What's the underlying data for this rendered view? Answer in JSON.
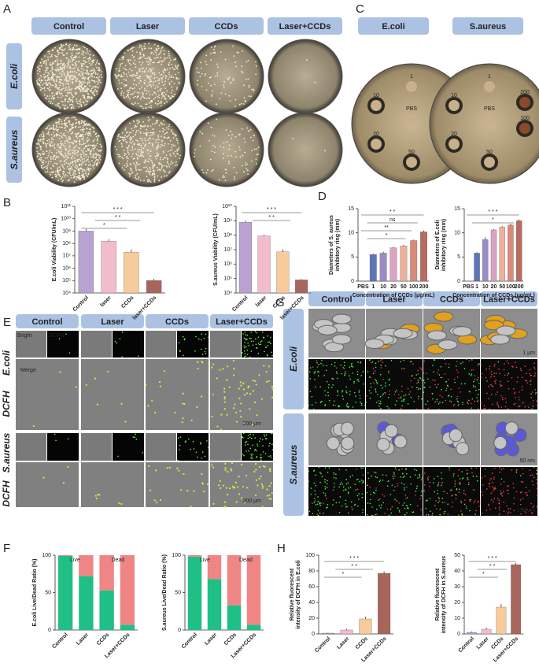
{
  "panel_labels": [
    "A",
    "B",
    "C",
    "D",
    "E",
    "F",
    "G",
    "H"
  ],
  "panel_a": {
    "columns": [
      "Control",
      "Laser",
      "CCDs",
      "Laser+CCDs"
    ],
    "rows": [
      "E.coli",
      "S.aureus"
    ]
  },
  "panel_c": {
    "columns": [
      "E.coli",
      "S.aureus"
    ],
    "disk_labels": [
      "1",
      "10",
      "200",
      "PBS",
      "20",
      "100",
      "50"
    ]
  },
  "panel_e": {
    "columns": [
      "Control",
      "Laser",
      "CCDs",
      "Laser+CCDs"
    ],
    "rows": [
      "E.coli",
      "S.aureus"
    ],
    "stain": "DCFH",
    "inset_labels": [
      "Bright",
      "DCFH",
      "Merge"
    ],
    "scale_bar": "200 μm"
  },
  "panel_g": {
    "columns": [
      "Control",
      "Laser",
      "CCDs",
      "Laser+CCDs"
    ],
    "rows": [
      "E.coli",
      "S.aureus"
    ],
    "scale_bars": [
      "1 μm",
      "100 μm",
      "50 nm",
      "100 μm"
    ]
  },
  "chart_data": [
    {
      "type": "bar",
      "log_scale": true,
      "ylabel": [
        "E.coli Viability (CFU/mL)"
      ],
      "categories": [
        "Control",
        "laser",
        "CCDs",
        "laser+CCDs"
      ],
      "values": [
        1000000000,
        150000000,
        20000000,
        100000
      ],
      "errors": [
        500000000,
        70000000,
        12000000,
        40000
      ],
      "colors": [
        "#b9a2d2",
        "#f2bccb",
        "#f8cb9c",
        "#a8655c"
      ],
      "ylim": [
        10000,
        100000000000
      ],
      "yticks": [
        {
          "value": 10000,
          "label": "10⁴"
        },
        {
          "value": 100000,
          "label": "10⁵"
        },
        {
          "value": 1000000,
          "label": "10⁶"
        },
        {
          "value": 10000000,
          "label": "10⁷"
        },
        {
          "value": 100000000,
          "label": "10⁸"
        },
        {
          "value": 1000000000,
          "label": "10⁹"
        },
        {
          "value": 10000000000,
          "label": "10¹⁰"
        },
        {
          "value": 100000000000,
          "label": "10¹¹"
        }
      ],
      "significance": [
        "* * *",
        "* *",
        "*"
      ]
    },
    {
      "type": "bar",
      "log_scale": true,
      "ylabel": [
        "S.aureus Viability (CFU/mL)"
      ],
      "categories": [
        "Control",
        "laser",
        "CCDs",
        "laser+CCDs"
      ],
      "values": [
        800000000,
        90000000,
        7000000,
        80000
      ],
      "errors": [
        250000000,
        20000000,
        3500000,
        10000
      ],
      "colors": [
        "#b9a2d2",
        "#f2bccb",
        "#f8cb9c",
        "#a8655c"
      ],
      "ylim": [
        10000,
        10000000000
      ],
      "yticks": [
        {
          "value": 10000,
          "label": "10⁴"
        },
        {
          "value": 100000,
          "label": "10⁵"
        },
        {
          "value": 1000000,
          "label": "10⁶"
        },
        {
          "value": 10000000,
          "label": "10⁷"
        },
        {
          "value": 100000000,
          "label": "10⁸"
        },
        {
          "value": 1000000000,
          "label": "10⁹"
        },
        {
          "value": 10000000000,
          "label": "10¹⁰"
        }
      ],
      "significance": [
        "* * *",
        "* *"
      ]
    },
    {
      "type": "bar",
      "ylabel": [
        "Diameters of S. aureus",
        "inhibitory ring (mm)"
      ],
      "xlabel": "Concentration of CCDs (μg/mL)",
      "categories": [
        "PBS",
        "1",
        "10",
        "20",
        "50",
        "100",
        "200"
      ],
      "values": [
        0,
        5.5,
        5.8,
        6.9,
        7.3,
        8.4,
        10.2
      ],
      "errors": [
        0,
        0.2,
        0.3,
        0.2,
        0.2,
        0.2,
        0.3
      ],
      "colors": [
        "#3f5a9c",
        "#5d76b8",
        "#9b8bc6",
        "#d9a4c4",
        "#efb09a",
        "#d98a78",
        "#b86b5f"
      ],
      "ylim": [
        0,
        15
      ],
      "yticks": [
        0,
        5,
        10,
        15
      ],
      "significance": [
        "* *",
        "ns",
        "**",
        "*"
      ]
    },
    {
      "type": "bar",
      "ylabel": [
        "Diameters of E.coli",
        "inhibitory ring (mm)"
      ],
      "xlabel": "Concentration of CCDs (μg/mL)",
      "categories": [
        "PBS",
        "1",
        "10",
        "20",
        "50",
        "100",
        "200"
      ],
      "values": [
        0,
        5.8,
        8.6,
        10.6,
        11.2,
        11.6,
        12.5
      ],
      "errors": [
        0,
        0.2,
        0.5,
        0.2,
        0.2,
        0.3,
        0.3
      ],
      "colors": [
        "#3f5a9c",
        "#5d76b8",
        "#9b8bc6",
        "#d9a4c4",
        "#efb09a",
        "#d98a78",
        "#b86b5f"
      ],
      "ylim": [
        0,
        15
      ],
      "yticks": [
        0,
        5,
        10,
        15
      ],
      "significance": [
        "* * *",
        "*"
      ]
    },
    {
      "type": "stacked_bar",
      "ylabel": [
        "E.coli Live/Dead Ratio (%)"
      ],
      "categories": [
        "Control",
        "Laser",
        "CCDs",
        "Laser+CCDs"
      ],
      "series": [
        {
          "name": "Live",
          "color": "#1fbf85",
          "values": [
            99,
            72,
            53,
            7
          ]
        },
        {
          "name": "Dead",
          "color": "#f08585",
          "values": [
            1,
            28,
            47,
            93
          ]
        }
      ],
      "ylim": [
        0,
        100
      ],
      "yticks": [
        0,
        50,
        100
      ]
    },
    {
      "type": "stacked_bar",
      "ylabel": [
        "S.aureus Live/Dead Ratio (%)"
      ],
      "categories": [
        "Control",
        "Laser",
        "CCDs",
        "Laser+CCDs"
      ],
      "series": [
        {
          "name": "Live",
          "color": "#1fbf85",
          "values": [
            98,
            68,
            33,
            7
          ]
        },
        {
          "name": "Dead",
          "color": "#f08585",
          "values": [
            2,
            32,
            67,
            93
          ]
        }
      ],
      "ylim": [
        0,
        100
      ],
      "yticks": [
        0,
        50,
        100
      ]
    },
    {
      "type": "bar",
      "ylabel": [
        "Relative fluorescent",
        "intensity of DCFH in E.coli"
      ],
      "categories": [
        "Control",
        "Laser",
        "CCDs",
        "Laser+CCDs"
      ],
      "values": [
        1,
        5,
        19,
        77
      ],
      "errors": [
        0.5,
        1.5,
        3,
        2.5
      ],
      "colors": [
        "#b9a2d2",
        "#f2bccb",
        "#f8cb9c",
        "#a8655c"
      ],
      "ylim": [
        0,
        100
      ],
      "yticks": [
        0,
        20,
        40,
        60,
        80,
        100
      ],
      "significance": [
        "* * *",
        "* *",
        "*"
      ]
    },
    {
      "type": "bar",
      "ylabel": [
        "Relative fluorescent",
        "intensity of DCFH in S.aureus"
      ],
      "categories": [
        "Control",
        "Laser",
        "CCDs",
        "Laser+CCDs"
      ],
      "values": [
        1,
        3,
        17,
        44
      ],
      "errors": [
        0.5,
        1,
        2,
        1.2
      ],
      "colors": [
        "#b9a2d2",
        "#f2bccb",
        "#f8cb9c",
        "#a8655c"
      ],
      "ylim": [
        0,
        50
      ],
      "yticks": [
        0,
        10,
        20,
        30,
        40,
        50
      ],
      "significance": [
        "* * *",
        "* *",
        "*"
      ]
    }
  ]
}
